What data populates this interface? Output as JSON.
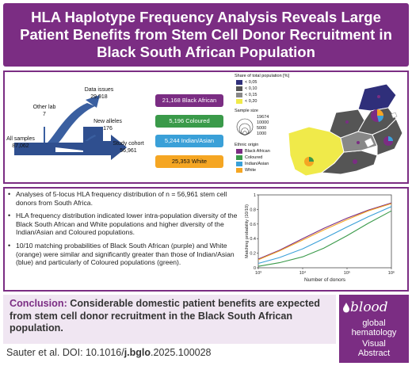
{
  "title": "HLA Haplotype Frequency Analysis Reveals Large\nPatient Benefits from Stem Cell Donor Recruitment in\nBlack South African Population",
  "flow": {
    "all_samples": "All samples\n87,062",
    "other_lab": "Other lab\n7",
    "data_issues": "Data issues\n29,918",
    "new_alleles": "New alleles\n176",
    "study_cohort": "Study cohort\n56,961"
  },
  "categories": [
    {
      "label": "21,168 Black African",
      "color": "#7b2d83",
      "text_color": "#ffffff"
    },
    {
      "label": "5,196 Coloured",
      "color": "#3a9a4a",
      "text_color": "#ffffff"
    },
    {
      "label": "5,244 Indian/Asian",
      "color": "#3aa0d8",
      "text_color": "#ffffff"
    },
    {
      "label": "25,353 White",
      "color": "#f5a623",
      "text_color": "#111111"
    }
  ],
  "map_legend": {
    "share_title": "Share of total population [%]",
    "share_items": [
      "< 0,05",
      "< 0,10",
      "< 0,15",
      "< 0,20"
    ],
    "share_colors": [
      "#2f2f7a",
      "#555555",
      "#888888",
      "#f0ea4a"
    ],
    "sample_title": "Sample size",
    "sample_items": [
      "19674",
      "10000",
      "5000",
      "1000"
    ],
    "ethnic_title": "Ethnic origin",
    "ethnic_items": [
      "Black African",
      "Coloured",
      "Indian/Asian",
      "White"
    ],
    "ethnic_colors": [
      "#7b2d83",
      "#3a9a4a",
      "#3aa0d8",
      "#f5a623"
    ]
  },
  "bullets": [
    "Analyses of 5-locus HLA frequency distribution of n = 56,961 stem cell donors from South Africa.",
    "HLA frequency distribution indicated lower intra-population diversity of the Black South African and White populations and higher diversity of the Indian/Asian and Coloured populations.",
    "10/10 matching probabilities of Black South African (purple) and White (orange) were similar and significantly greater than those of Indian/Asian (blue) and particularly of Coloured populations (green)."
  ],
  "chart_data": {
    "type": "line",
    "xlabel": "Number of donors",
    "ylabel": "Matching probability (10/10)",
    "xscale": "log",
    "xlim": [
      1000,
      1000000
    ],
    "ylim": [
      0,
      1
    ],
    "x_ticks": [
      "10³",
      "10⁴",
      "10⁵",
      "10⁶"
    ],
    "y_ticks": [
      "0",
      "0.2",
      "0.4",
      "0.6",
      "0.8",
      "1"
    ],
    "x": [
      1000,
      3000,
      10000,
      30000,
      100000,
      300000,
      1000000
    ],
    "series": [
      {
        "color": "#7b2d83",
        "values": [
          0.12,
          0.24,
          0.4,
          0.54,
          0.68,
          0.79,
          0.89
        ]
      },
      {
        "color": "#f5a623",
        "values": [
          0.11,
          0.23,
          0.38,
          0.52,
          0.66,
          0.78,
          0.88
        ]
      },
      {
        "color": "#3aa0d8",
        "values": [
          0.06,
          0.14,
          0.26,
          0.4,
          0.56,
          0.7,
          0.84
        ]
      },
      {
        "color": "#3a9a4a",
        "values": [
          0.02,
          0.07,
          0.15,
          0.27,
          0.44,
          0.61,
          0.78
        ]
      }
    ]
  },
  "conclusion": {
    "label": "Conclusion:",
    "text": " Considerable domestic patient benefits are expected from stem cell donor recruitment in the Black South African population."
  },
  "citation": {
    "prefix": "Sauter et al. DOI: 10.1016/",
    "bold": "j.bglo",
    "suffix": ".2025.100028"
  },
  "badge": {
    "brand": "blood",
    "lines": [
      "global",
      "hematology",
      "Visual",
      "Abstract"
    ]
  }
}
